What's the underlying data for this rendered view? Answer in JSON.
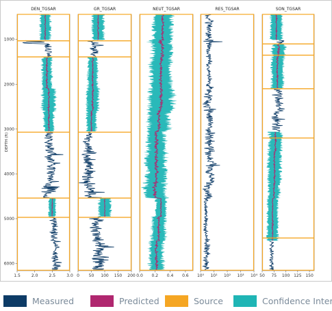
{
  "chart_data": {
    "type": "line",
    "ylabel": "DEPTH (ft)",
    "y_ticks": [
      1000,
      2000,
      3000,
      4000,
      5000,
      6000
    ],
    "depth_range": [
      440,
      6160
    ],
    "depth_step": 10,
    "colors": {
      "measured": "#0d3b66",
      "predicted": "#b0276f",
      "source": "#f5a623",
      "confidence": "#1fb5b5"
    },
    "tracks": [
      {
        "title": "DEN_TGSAR",
        "xlim": [
          1.5,
          3.0
        ],
        "x_ticks": [
          1.5,
          2.0,
          2.5,
          3.0
        ],
        "x_tick_labels": [
          "1.5",
          "2.0",
          "2.5",
          "3.0"
        ],
        "log_scale": false,
        "segments": [
          [
            440,
            1020,
            2.3,
            0.04,
            0.33
          ],
          [
            1020,
            1100,
            1.9,
            0.35,
            0
          ],
          [
            1100,
            1400,
            2.35,
            0.12,
            0
          ],
          [
            1400,
            2100,
            2.35,
            0.06,
            0.3
          ],
          [
            2100,
            2600,
            2.4,
            0.06,
            0.42
          ],
          [
            2600,
            3060,
            2.4,
            0.06,
            0.32
          ],
          [
            3060,
            3500,
            2.42,
            0.12,
            0
          ],
          [
            3500,
            4200,
            2.45,
            0.14,
            0
          ],
          [
            4200,
            4550,
            2.4,
            0.22,
            0
          ],
          [
            4550,
            4960,
            2.5,
            0.04,
            0.22
          ],
          [
            4960,
            5500,
            2.55,
            0.12,
            0
          ],
          [
            5500,
            6150,
            2.6,
            0.12,
            0
          ]
        ],
        "source_intervals": [
          [
            440,
            1030
          ],
          [
            1390,
            3070
          ],
          [
            4540,
            4970
          ]
        ],
        "training_boxes": [
          [
            1030,
            1390
          ],
          [
            3070,
            4540
          ],
          [
            4970,
            6150
          ]
        ]
      },
      {
        "title": "GR_TGSAR",
        "xlim": [
          0,
          200
        ],
        "x_ticks": [
          0,
          50,
          100,
          150,
          200
        ],
        "x_tick_labels": [
          "0",
          "50",
          "100",
          "150",
          "200"
        ],
        "log_scale": false,
        "segments": [
          [
            440,
            1020,
            75,
            6,
            48
          ],
          [
            1020,
            1100,
            55,
            30,
            0
          ],
          [
            1100,
            1400,
            60,
            15,
            0
          ],
          [
            1400,
            2100,
            55,
            8,
            40
          ],
          [
            2100,
            2600,
            55,
            8,
            50
          ],
          [
            2600,
            3060,
            50,
            8,
            40
          ],
          [
            3060,
            3500,
            40,
            15,
            0
          ],
          [
            3500,
            4200,
            40,
            22,
            0
          ],
          [
            4200,
            4550,
            40,
            30,
            0
          ],
          [
            4550,
            4960,
            100,
            4,
            50
          ],
          [
            4960,
            5500,
            70,
            22,
            0
          ],
          [
            5500,
            6150,
            80,
            25,
            0
          ]
        ],
        "source_intervals": [
          [
            440,
            1030
          ],
          [
            1390,
            3070
          ],
          [
            4540,
            4970
          ]
        ],
        "training_boxes": [
          [
            1030,
            1390
          ],
          [
            3070,
            4540
          ],
          [
            4970,
            6150
          ]
        ]
      },
      {
        "title": "NEUT_TGSAR",
        "xlim": [
          0.0,
          0.7
        ],
        "x_ticks": [
          0.0,
          0.2,
          0.4,
          0.6
        ],
        "x_tick_labels": [
          "0.0",
          "0.2",
          "0.4",
          "0.6"
        ],
        "log_scale": false,
        "segments": [
          [
            440,
            1020,
            0.3,
            0.04,
            0.28
          ],
          [
            1020,
            1100,
            0.28,
            0.1,
            0.3
          ],
          [
            1100,
            1400,
            0.3,
            0.06,
            0.28
          ],
          [
            1400,
            2100,
            0.28,
            0.05,
            0.3
          ],
          [
            2100,
            2600,
            0.28,
            0.06,
            0.35
          ],
          [
            2600,
            3060,
            0.25,
            0.06,
            0.3
          ],
          [
            3060,
            3500,
            0.22,
            0.06,
            0.25
          ],
          [
            3500,
            4200,
            0.22,
            0.07,
            0.28
          ],
          [
            4200,
            4550,
            0.2,
            0.08,
            0.3
          ],
          [
            4550,
            4960,
            0.28,
            0.02,
            0.15
          ],
          [
            4960,
            5500,
            0.25,
            0.05,
            0.2
          ],
          [
            5500,
            6150,
            0.22,
            0.05,
            0.2
          ]
        ],
        "source_intervals": [],
        "training_boxes": [
          [
            440,
            6150
          ]
        ]
      },
      {
        "title": "RES_TGSAR",
        "xlim": [
          0,
          4
        ],
        "x_ticks": [
          0,
          1,
          2,
          3,
          4
        ],
        "x_tick_labels": [
          "10⁰",
          "10¹",
          "10²",
          "10³",
          "10⁴"
        ],
        "log_scale": true,
        "segments": [
          [
            440,
            1020,
            0.6,
            0.3,
            0
          ],
          [
            1020,
            1100,
            0.7,
            0.5,
            0
          ],
          [
            1100,
            1400,
            0.6,
            0.2,
            0
          ],
          [
            1400,
            2100,
            0.65,
            0.2,
            0
          ],
          [
            2100,
            2600,
            0.6,
            0.3,
            0
          ],
          [
            2600,
            3060,
            0.7,
            0.25,
            0
          ],
          [
            3060,
            3500,
            0.7,
            0.35,
            0
          ],
          [
            3500,
            4200,
            0.75,
            0.35,
            0
          ],
          [
            4200,
            4550,
            0.6,
            0.3,
            0
          ],
          [
            4550,
            4960,
            0.4,
            0.12,
            0
          ],
          [
            4960,
            5500,
            0.4,
            0.15,
            0
          ],
          [
            5500,
            6150,
            0.4,
            0.2,
            0
          ]
        ],
        "source_intervals": [],
        "training_boxes": [
          [
            440,
            6150
          ]
        ]
      },
      {
        "title": "SON_TGSAR",
        "xlim": [
          50,
          160
        ],
        "x_ticks": [
          50,
          75,
          100,
          125,
          150
        ],
        "x_tick_labels": [
          "50",
          "75",
          "100",
          "125",
          "150"
        ],
        "log_scale": false,
        "segments": [
          [
            440,
            1020,
            80,
            4,
            28
          ],
          [
            1020,
            1100,
            90,
            10,
            0
          ],
          [
            1100,
            1400,
            85,
            6,
            30
          ],
          [
            1400,
            2100,
            82,
            5,
            28
          ],
          [
            2100,
            2600,
            85,
            10,
            0
          ],
          [
            2600,
            3060,
            80,
            8,
            0
          ],
          [
            3060,
            3500,
            78,
            5,
            30
          ],
          [
            3500,
            4200,
            76,
            5,
            30
          ],
          [
            4200,
            4550,
            75,
            4,
            26
          ],
          [
            4550,
            4960,
            72,
            3,
            24
          ],
          [
            4960,
            5500,
            72,
            4,
            26
          ],
          [
            5500,
            6150,
            70,
            4,
            0
          ]
        ],
        "source_intervals": [
          [
            440,
            1100
          ],
          [
            1350,
            2100
          ],
          [
            3200,
            5430
          ]
        ],
        "training_boxes": [
          [
            1100,
            1350
          ],
          [
            2100,
            3200
          ],
          [
            5430,
            6150
          ]
        ]
      }
    ]
  },
  "legend": [
    {
      "key": "measured",
      "label": "Measured"
    },
    {
      "key": "predicted",
      "label": "Predicted"
    },
    {
      "key": "source",
      "label": "Source"
    },
    {
      "key": "confidence",
      "label": "Confidence Interval"
    }
  ]
}
